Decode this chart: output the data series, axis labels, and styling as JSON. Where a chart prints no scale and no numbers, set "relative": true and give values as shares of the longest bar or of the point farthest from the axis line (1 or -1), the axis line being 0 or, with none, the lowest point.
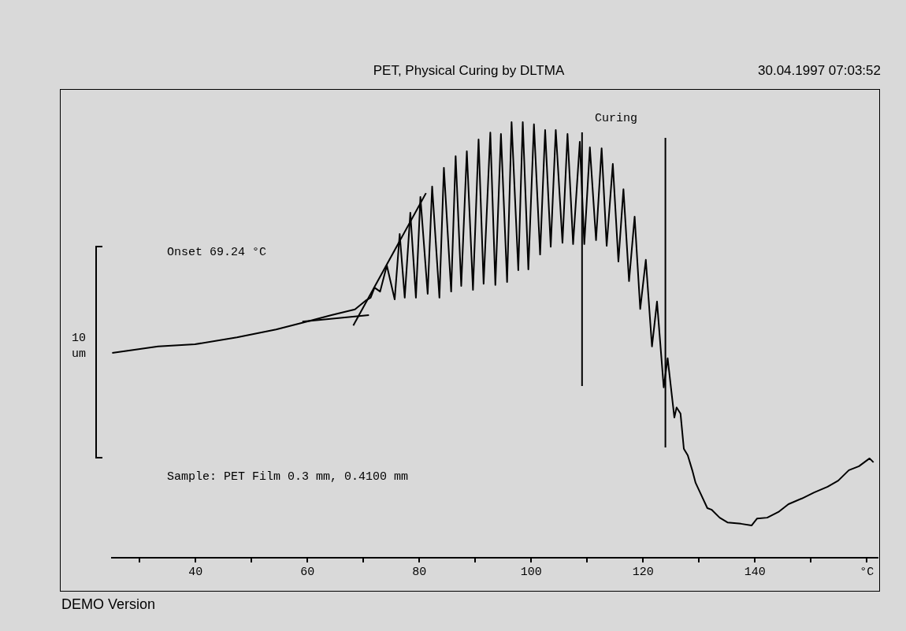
{
  "chart_data": {
    "type": "line",
    "title": "PET, Physical Curing by DLTMA",
    "subtitle": "30.04.1997 07:03:52",
    "ylabel": "10 um",
    "relative": true,
    "legend": false,
    "grid": false,
    "marker": "none",
    "line_style": "solid",
    "tick_labels": "x",
    "xlim": [
      25,
      162
    ],
    "xticks": [
      {
        "value": 30,
        "label": null
      },
      40,
      {
        "value": 50,
        "label": null
      },
      60,
      {
        "value": 70,
        "label": null
      },
      80,
      {
        "value": 90,
        "label": null
      },
      100,
      {
        "value": 110,
        "label": null
      },
      120,
      {
        "value": 130,
        "label": null
      },
      140,
      {
        "value": 150,
        "label": null
      },
      {
        "value": 160,
        "label": "°C"
      }
    ],
    "series": [
      {
        "color": "#000000",
        "x": [
          25.1,
          33.3,
          39.9,
          47.4,
          54.4,
          59.9,
          64.3,
          68.5,
          70.4,
          71.3,
          72.0,
          73.0,
          74.2,
          75.6,
          76.5,
          77.4,
          78.4,
          79.4,
          80.2,
          81.5,
          82.3,
          83.6,
          84.4,
          85.7,
          86.5,
          87.5,
          88.5,
          89.6,
          90.6,
          91.5,
          92.7,
          93.6,
          94.6,
          95.7,
          96.5,
          97.7,
          98.5,
          99.5,
          100.5,
          101.6,
          102.5,
          103.5,
          104.4,
          105.6,
          106.5,
          107.5,
          108.7,
          109.5,
          110.5,
          111.6,
          112.6,
          113.5,
          114.6,
          115.6,
          116.5,
          117.5,
          118.5,
          119.5,
          120.5,
          121.6,
          122.5,
          123.7,
          124.4,
          125.6,
          126.0,
          126.7,
          127.3,
          128.0,
          128.8,
          129.4,
          130.2,
          131.5,
          132.3,
          133.7,
          135.1,
          137.5,
          139.4,
          140.4,
          142.2,
          144.2,
          146.0,
          148.4,
          150.6,
          153.0,
          154.9,
          156.8,
          158.6,
          160.5,
          161.2
        ],
        "values": [
          0.47,
          0.485,
          0.49,
          0.506,
          0.524,
          0.542,
          0.557,
          0.57,
          0.59,
          0.597,
          0.62,
          0.611,
          0.671,
          0.593,
          0.743,
          0.597,
          0.792,
          0.597,
          0.828,
          0.606,
          0.852,
          0.597,
          0.895,
          0.611,
          0.922,
          0.624,
          0.933,
          0.615,
          0.96,
          0.629,
          0.976,
          0.626,
          0.973,
          0.633,
          1,
          0.66,
          1,
          0.662,
          0.995,
          0.696,
          0.982,
          0.714,
          0.982,
          0.723,
          0.973,
          0.72,
          0.955,
          0.72,
          0.942,
          0.729,
          0.94,
          0.716,
          0.904,
          0.68,
          0.846,
          0.635,
          0.783,
          0.571,
          0.684,
          0.485,
          0.588,
          0.391,
          0.458,
          0.322,
          0.345,
          0.331,
          0.25,
          0.235,
          0.201,
          0.172,
          0.15,
          0.114,
          0.11,
          0.092,
          0.081,
          0.078,
          0.074,
          0.09,
          0.092,
          0.105,
          0.123,
          0.136,
          0.15,
          0.163,
          0.177,
          0.201,
          0.21,
          0.228,
          0.219
        ]
      },
      {
        "color": "#000000",
        "x": [
          59.1,
          71.0
        ],
        "values": [
          0.542,
          0.557
        ]
      },
      {
        "color": "#000000",
        "x": [
          68.2,
          81.2
        ],
        "values": [
          0.533,
          0.837
        ]
      }
    ],
    "ref_lines": [
      {
        "axis": "x",
        "value": 109.1,
        "color": "#000000"
      },
      {
        "axis": "x",
        "value": 124.0,
        "color": "#000000"
      }
    ],
    "annotations": [
      "Onset 69.24 °C",
      "Sample: PET Film 0.3 mm, 0.4100 mm",
      "Curing",
      "DEMO Version"
    ]
  }
}
